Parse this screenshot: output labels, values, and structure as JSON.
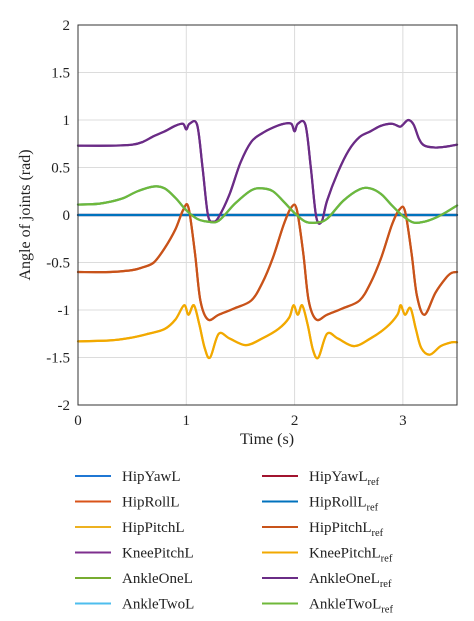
{
  "chart_data": {
    "type": "line",
    "title": "",
    "xlabel": "Time (s)",
    "ylabel": "Angle of joints (rad)",
    "xlim": [
      0,
      3.5
    ],
    "ylim": [
      -2,
      2
    ],
    "xticks": [
      0,
      1,
      2,
      3
    ],
    "yticks": [
      -2,
      -1.5,
      -1,
      -0.5,
      0,
      0.5,
      1,
      1.5,
      2
    ],
    "xtick_labels": [
      "0",
      "1",
      "2",
      "3"
    ],
    "ytick_labels": [
      "-2",
      "-1.5",
      "-1",
      "-0.5",
      "0",
      "0.5",
      "1",
      "1.5",
      "2"
    ],
    "grid": true,
    "legend_position": "below",
    "series": [
      {
        "name": "HipYawL",
        "color": "#1f77d4",
        "x": [
          0,
          0.5,
          1.0,
          1.5,
          2.0,
          2.5,
          3.0,
          3.5
        ],
        "y": [
          0,
          0,
          0,
          0,
          0,
          0,
          0,
          0
        ]
      },
      {
        "name": "HipRollL",
        "color": "#d95319",
        "x": [
          0,
          0.3,
          0.5,
          0.6,
          0.7,
          0.8,
          0.9,
          0.97,
          1.02,
          1.08,
          1.13,
          1.2,
          1.3,
          1.45,
          1.6,
          1.7,
          1.8,
          1.9,
          1.97,
          2.02,
          2.08,
          2.13,
          2.2,
          2.3,
          2.45,
          2.6,
          2.7,
          2.8,
          2.9,
          2.97,
          3.02,
          3.08,
          3.13,
          3.2,
          3.3,
          3.4,
          3.45,
          3.5
        ],
        "y": [
          -0.6,
          -0.6,
          -0.58,
          -0.55,
          -0.5,
          -0.35,
          -0.15,
          0.05,
          0.08,
          -0.4,
          -0.9,
          -1.1,
          -1.05,
          -0.98,
          -0.9,
          -0.72,
          -0.45,
          -0.1,
          0.08,
          0.06,
          -0.4,
          -0.9,
          -1.1,
          -1.05,
          -0.98,
          -0.9,
          -0.72,
          -0.45,
          -0.1,
          0.06,
          0.04,
          -0.4,
          -0.85,
          -1.05,
          -0.82,
          -0.66,
          -0.61,
          -0.6
        ]
      },
      {
        "name": "HipPitchL",
        "color": "#edb120",
        "x": [
          0,
          0.3,
          0.5,
          0.65,
          0.8,
          0.9,
          0.98,
          1.02,
          1.07,
          1.12,
          1.17,
          1.22,
          1.3,
          1.4,
          1.55,
          1.7,
          1.85,
          1.95,
          1.99,
          2.03,
          2.07,
          2.12,
          2.17,
          2.22,
          2.3,
          2.4,
          2.55,
          2.7,
          2.85,
          2.95,
          2.98,
          3.02,
          3.07,
          3.12,
          3.17,
          3.25,
          3.35,
          3.45,
          3.5
        ],
        "y": [
          -1.33,
          -1.32,
          -1.29,
          -1.25,
          -1.2,
          -1.1,
          -0.95,
          -1.05,
          -0.95,
          -1.15,
          -1.4,
          -1.5,
          -1.25,
          -1.3,
          -1.37,
          -1.3,
          -1.2,
          -1.08,
          -0.95,
          -1.05,
          -0.95,
          -1.15,
          -1.42,
          -1.5,
          -1.25,
          -1.3,
          -1.38,
          -1.3,
          -1.18,
          -1.05,
          -0.95,
          -1.05,
          -0.98,
          -1.2,
          -1.4,
          -1.47,
          -1.38,
          -1.34,
          -1.34
        ]
      },
      {
        "name": "KneePitchL",
        "color": "#7e2f8e",
        "x": [
          0,
          0.3,
          0.5,
          0.6,
          0.7,
          0.8,
          0.9,
          0.97,
          1.0,
          1.03,
          1.1,
          1.15,
          1.2,
          1.25,
          1.3,
          1.4,
          1.5,
          1.6,
          1.7,
          1.8,
          1.9,
          1.97,
          2.0,
          2.03,
          2.1,
          2.15,
          2.2,
          2.25,
          2.3,
          2.4,
          2.5,
          2.6,
          2.7,
          2.8,
          2.9,
          2.97,
          3.0,
          3.05,
          3.1,
          3.15,
          3.2,
          3.3,
          3.4,
          3.5
        ],
        "y": [
          0.73,
          0.73,
          0.74,
          0.77,
          0.83,
          0.88,
          0.94,
          0.96,
          0.9,
          0.96,
          0.95,
          0.5,
          0.0,
          -0.07,
          -0.02,
          0.22,
          0.55,
          0.77,
          0.86,
          0.92,
          0.96,
          0.96,
          0.88,
          0.96,
          0.95,
          0.5,
          -0.02,
          -0.07,
          0.15,
          0.45,
          0.68,
          0.82,
          0.88,
          0.94,
          0.96,
          0.93,
          0.95,
          1.0,
          0.95,
          0.8,
          0.73,
          0.71,
          0.72,
          0.74
        ]
      },
      {
        "name": "AnkleOneL",
        "color": "#77ac30",
        "x": [
          0,
          0.2,
          0.4,
          0.55,
          0.7,
          0.8,
          0.9,
          1.0,
          1.1,
          1.2,
          1.3,
          1.45,
          1.6,
          1.7,
          1.8,
          1.9,
          2.0,
          2.1,
          2.2,
          2.3,
          2.45,
          2.6,
          2.7,
          2.8,
          2.9,
          3.0,
          3.1,
          3.2,
          3.3,
          3.4,
          3.5
        ],
        "y": [
          0.11,
          0.12,
          0.17,
          0.25,
          0.3,
          0.28,
          0.18,
          0.05,
          -0.04,
          -0.07,
          -0.06,
          0.12,
          0.26,
          0.28,
          0.25,
          0.14,
          0.02,
          -0.07,
          -0.08,
          -0.04,
          0.15,
          0.27,
          0.28,
          0.22,
          0.1,
          -0.01,
          -0.08,
          -0.07,
          -0.03,
          0.03,
          0.1
        ]
      },
      {
        "name": "AnkleTwoL",
        "color": "#4dbeee",
        "x": [
          0,
          0.2,
          0.4,
          0.55,
          0.7,
          0.8,
          0.9,
          1.0,
          1.1,
          1.2,
          1.3,
          1.45,
          1.6,
          1.7,
          1.8,
          1.9,
          2.0,
          2.1,
          2.2,
          2.3,
          2.45,
          2.6,
          2.7,
          2.8,
          2.9,
          3.0,
          3.1,
          3.2,
          3.3,
          3.4,
          3.5
        ],
        "y": [
          0.11,
          0.12,
          0.17,
          0.25,
          0.3,
          0.28,
          0.18,
          0.05,
          -0.04,
          -0.07,
          -0.06,
          0.12,
          0.26,
          0.28,
          0.25,
          0.14,
          0.02,
          -0.07,
          -0.08,
          -0.04,
          0.15,
          0.27,
          0.28,
          0.22,
          0.1,
          -0.01,
          -0.08,
          -0.07,
          -0.03,
          0.03,
          0.1
        ]
      },
      {
        "name": "HipYawL",
        "name_sub": "ref",
        "color": "#a2142f",
        "x": [
          0,
          0.5,
          1.0,
          1.5,
          2.0,
          2.5,
          3.0,
          3.5
        ],
        "y": [
          0,
          0,
          0,
          0,
          0,
          0,
          0,
          0
        ]
      },
      {
        "name": "HipRollL",
        "name_sub": "ref",
        "color": "#0072bd",
        "x": [
          0,
          0.5,
          1.0,
          1.5,
          2.0,
          2.5,
          3.0,
          3.5
        ],
        "y": [
          0,
          0,
          0,
          0,
          0,
          0,
          0,
          0
        ]
      },
      {
        "name": "HipPitchL",
        "name_sub": "ref",
        "color": "#c8531a",
        "x": [
          0,
          0.3,
          0.5,
          0.6,
          0.7,
          0.8,
          0.9,
          0.97,
          1.02,
          1.08,
          1.13,
          1.2,
          1.3,
          1.45,
          1.6,
          1.7,
          1.8,
          1.9,
          1.97,
          2.02,
          2.08,
          2.13,
          2.2,
          2.3,
          2.45,
          2.6,
          2.7,
          2.8,
          2.9,
          2.97,
          3.02,
          3.08,
          3.13,
          3.2,
          3.3,
          3.4,
          3.45,
          3.5
        ],
        "y": [
          -0.6,
          -0.6,
          -0.58,
          -0.55,
          -0.5,
          -0.35,
          -0.15,
          0.05,
          0.08,
          -0.4,
          -0.9,
          -1.1,
          -1.05,
          -0.98,
          -0.9,
          -0.72,
          -0.45,
          -0.1,
          0.08,
          0.06,
          -0.4,
          -0.9,
          -1.1,
          -1.05,
          -0.98,
          -0.9,
          -0.72,
          -0.45,
          -0.1,
          0.06,
          0.04,
          -0.4,
          -0.85,
          -1.05,
          -0.82,
          -0.66,
          -0.61,
          -0.6
        ]
      },
      {
        "name": "KneePitchL",
        "name_sub": "ref",
        "color": "#f2a900",
        "x": [
          0,
          0.3,
          0.5,
          0.65,
          0.8,
          0.9,
          0.98,
          1.02,
          1.07,
          1.12,
          1.17,
          1.22,
          1.3,
          1.4,
          1.55,
          1.7,
          1.85,
          1.95,
          1.99,
          2.03,
          2.07,
          2.12,
          2.17,
          2.22,
          2.3,
          2.4,
          2.55,
          2.7,
          2.85,
          2.95,
          2.98,
          3.02,
          3.07,
          3.12,
          3.17,
          3.25,
          3.35,
          3.45,
          3.5
        ],
        "y": [
          -1.33,
          -1.32,
          -1.29,
          -1.25,
          -1.2,
          -1.1,
          -0.95,
          -1.05,
          -0.95,
          -1.15,
          -1.4,
          -1.5,
          -1.25,
          -1.3,
          -1.37,
          -1.3,
          -1.2,
          -1.08,
          -0.95,
          -1.05,
          -0.95,
          -1.15,
          -1.42,
          -1.5,
          -1.25,
          -1.3,
          -1.38,
          -1.3,
          -1.18,
          -1.05,
          -0.95,
          -1.05,
          -0.98,
          -1.2,
          -1.4,
          -1.47,
          -1.38,
          -1.34,
          -1.34
        ]
      },
      {
        "name": "AnkleOneL",
        "name_sub": "ref",
        "color": "#6a2c86",
        "x": [
          0,
          0.3,
          0.5,
          0.6,
          0.7,
          0.8,
          0.9,
          0.97,
          1.0,
          1.03,
          1.1,
          1.15,
          1.2,
          1.25,
          1.3,
          1.4,
          1.5,
          1.6,
          1.7,
          1.8,
          1.9,
          1.97,
          2.0,
          2.03,
          2.1,
          2.15,
          2.2,
          2.25,
          2.3,
          2.4,
          2.5,
          2.6,
          2.7,
          2.8,
          2.9,
          2.97,
          3.0,
          3.05,
          3.1,
          3.15,
          3.2,
          3.3,
          3.4,
          3.5
        ],
        "y": [
          0.73,
          0.73,
          0.74,
          0.77,
          0.83,
          0.88,
          0.94,
          0.96,
          0.9,
          0.96,
          0.95,
          0.5,
          0.0,
          -0.07,
          -0.02,
          0.22,
          0.55,
          0.77,
          0.86,
          0.92,
          0.96,
          0.96,
          0.88,
          0.96,
          0.95,
          0.5,
          -0.02,
          -0.07,
          0.15,
          0.45,
          0.68,
          0.82,
          0.88,
          0.94,
          0.96,
          0.93,
          0.95,
          1.0,
          0.95,
          0.8,
          0.73,
          0.71,
          0.72,
          0.74
        ]
      },
      {
        "name": "AnkleTwoL",
        "name_sub": "ref",
        "color": "#6fb83a",
        "x": [
          0,
          0.2,
          0.4,
          0.55,
          0.7,
          0.8,
          0.9,
          1.0,
          1.1,
          1.2,
          1.3,
          1.45,
          1.6,
          1.7,
          1.8,
          1.9,
          2.0,
          2.1,
          2.2,
          2.3,
          2.45,
          2.6,
          2.7,
          2.8,
          2.9,
          3.0,
          3.1,
          3.2,
          3.3,
          3.4,
          3.5
        ],
        "y": [
          0.11,
          0.12,
          0.17,
          0.25,
          0.3,
          0.28,
          0.18,
          0.05,
          -0.04,
          -0.07,
          -0.06,
          0.12,
          0.26,
          0.28,
          0.25,
          0.14,
          0.02,
          -0.07,
          -0.08,
          -0.04,
          0.15,
          0.27,
          0.28,
          0.22,
          0.1,
          -0.01,
          -0.08,
          -0.07,
          -0.03,
          0.03,
          0.1
        ]
      }
    ]
  }
}
